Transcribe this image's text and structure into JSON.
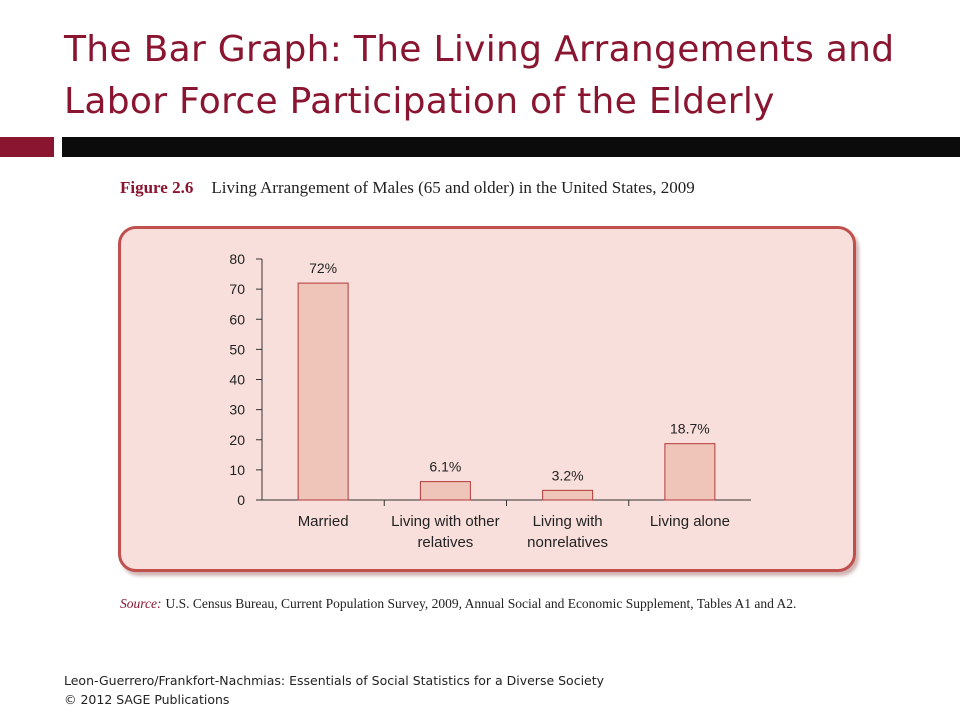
{
  "slide": {
    "title_line1": "The Bar Graph: The Living Arrangements and",
    "title_line2": "Labor Force Participation of the Elderly"
  },
  "figure": {
    "label": "Figure 2.6",
    "caption": "Living Arrangement of Males (65 and older) in the United States, 2009",
    "source_label": "Source:",
    "source_text": "U.S. Census Bureau, Current Population Survey, 2009, Annual Social and Economic Supplement, Tables A1 and A2."
  },
  "footer": {
    "line1": "Leon-Guerrero/Frankfort-Nachmias: Essentials of Social Statistics for a Diverse Society",
    "line2": "© 2012 SAGE Publications"
  },
  "colors": {
    "title": "#8a1530",
    "panel_bg": "#f8dfdb",
    "panel_border": "#c0504d",
    "bar_fill": "#efc4b9",
    "bar_stroke": "#b23a3a"
  },
  "chart_data": {
    "type": "bar",
    "categories": [
      [
        "Married"
      ],
      [
        "Living with other",
        "relatives"
      ],
      [
        "Living with",
        "nonrelatives"
      ],
      [
        "Living alone"
      ]
    ],
    "values": [
      72,
      6.1,
      3.2,
      18.7
    ],
    "data_labels": [
      "72%",
      "6.1%",
      "3.2%",
      "18.7%"
    ],
    "ylim": [
      0,
      80
    ],
    "yticks": [
      0,
      10,
      20,
      30,
      40,
      50,
      60,
      70,
      80
    ],
    "xlabel": "",
    "ylabel": "",
    "grid": false,
    "legend": "none"
  }
}
